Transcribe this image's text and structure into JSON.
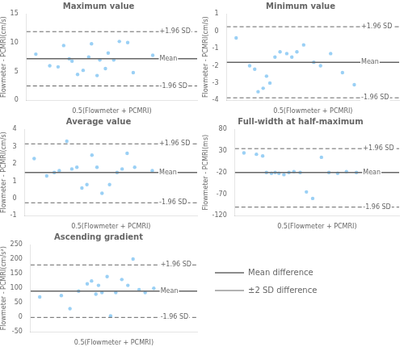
{
  "chart_data": [
    {
      "type": "scatter",
      "title": "Maximum value",
      "xlabel": "0.5(Flowmeter + PCMRI)",
      "ylabel": "Flowmeter - PCMRI(cm/s)",
      "x": [
        7.0,
        7.5,
        7.8,
        8.0,
        8.2,
        8.3,
        8.5,
        8.7,
        8.9,
        9.0,
        9.2,
        9.3,
        9.5,
        9.6,
        9.8,
        10.0,
        10.3,
        10.5,
        11.2
      ],
      "values": [
        8.0,
        6.0,
        5.8,
        9.5,
        7.2,
        6.8,
        4.5,
        5.2,
        7.5,
        9.8,
        4.3,
        7.0,
        5.5,
        8.2,
        7.0,
        10.2,
        10.0,
        4.8,
        7.8
      ],
      "xlim": [
        6.664,
        12.796
      ],
      "ylim": [
        0,
        15
      ],
      "yticks": [
        0,
        5,
        10,
        15
      ],
      "annotations": [
        {
          "text": "Mean",
          "y": 7.2,
          "line_style": "solid"
        },
        {
          "text": "+1.96 SD",
          "y": 11.9,
          "line_style": "dashed"
        },
        {
          "text": "-1.96 SD",
          "y": 2.5,
          "line_style": "dashed"
        }
      ],
      "grid": false,
      "tick_labels": "y"
    },
    {
      "type": "scatter",
      "title": "Minimum value",
      "xlabel": "0.5(Flowmeter + PCMRI)",
      "ylabel": "Flowmeter - PCMRI(cm/s)",
      "x": [
        1.2,
        2.0,
        2.3,
        2.5,
        2.8,
        3.0,
        3.2,
        3.5,
        3.8,
        4.2,
        4.5,
        4.8,
        5.2,
        5.8,
        6.2,
        6.8,
        7.5,
        8.2
      ],
      "values": [
        -0.4,
        -2.0,
        -2.2,
        -3.5,
        -3.3,
        -2.6,
        -3.0,
        -1.5,
        -1.2,
        -1.3,
        -1.5,
        -1.2,
        -0.8,
        -1.8,
        -2.0,
        -1.3,
        -2.4,
        -3.1
      ],
      "xlim": [
        0.64,
        10.86
      ],
      "ylim": [
        -4,
        1
      ],
      "yticks": [
        -4,
        -3,
        -2,
        -1,
        0,
        1
      ],
      "annotations": [
        {
          "text": "Mean",
          "y": -1.8,
          "line_style": "solid"
        },
        {
          "text": "+1.96 SD",
          "y": 0.25,
          "line_style": "dashed"
        },
        {
          "text": "-1.96 SD",
          "y": -3.85,
          "line_style": "dashed"
        }
      ],
      "grid": false,
      "tick_labels": "y"
    },
    {
      "type": "scatter",
      "title": "Average value",
      "xlabel": "0.5(Flowmeter + PCMRI)",
      "ylabel": "Flowmeter - PCMRI(cm/s)",
      "x": [
        3.5,
        4.0,
        4.3,
        4.5,
        4.8,
        5.0,
        5.2,
        5.4,
        5.6,
        5.8,
        6.0,
        6.2,
        6.5,
        6.8,
        7.0,
        7.2,
        7.5,
        8.2
      ],
      "values": [
        2.3,
        1.3,
        1.5,
        1.6,
        3.3,
        1.7,
        1.8,
        0.6,
        0.8,
        2.5,
        1.8,
        0.3,
        0.8,
        1.5,
        1.7,
        2.6,
        1.8,
        1.6
      ],
      "xlim": [
        3.124,
        9.986
      ],
      "ylim": [
        -1,
        4
      ],
      "yticks": [
        -1,
        0,
        1,
        2,
        3,
        4
      ],
      "annotations": [
        {
          "text": "Mean",
          "y": 1.5,
          "line_style": "solid"
        },
        {
          "text": "+1.96 SD",
          "y": 3.15,
          "line_style": "dashed"
        },
        {
          "text": "-1.96 SD",
          "y": -0.25,
          "line_style": "dashed"
        }
      ],
      "grid": false,
      "tick_labels": "y"
    },
    {
      "type": "scatter",
      "title": "Full-width at half-maximum",
      "xlabel": "0.5(Flowmeter + PCMRI)",
      "ylabel": "Flowmeter - PCMRI(ms)",
      "x": [
        100,
        110,
        115,
        118,
        122,
        125,
        128,
        132,
        136,
        140,
        145,
        150,
        155,
        162,
        168,
        175,
        182,
        190
      ],
      "values": [
        25,
        22,
        18,
        -20,
        -22,
        -20,
        -22,
        -25,
        -20,
        -18,
        -20,
        -65,
        -80,
        15,
        -20,
        -22,
        -18,
        -20
      ],
      "xlim": [
        92.8,
        224.2
      ],
      "ylim": [
        -120,
        80
      ],
      "yticks": [
        -120,
        -70,
        -20,
        30,
        80
      ],
      "annotations": [
        {
          "text": "Mean",
          "y": -20,
          "line_style": "solid"
        },
        {
          "text": "+1.96 SD",
          "y": 35,
          "line_style": "dashed"
        },
        {
          "text": "-1.96 SD",
          "y": -100,
          "line_style": "dashed"
        }
      ],
      "grid": false,
      "tick_labels": "y"
    },
    {
      "type": "scatter",
      "title": "Ascending gradient",
      "xlabel": "0.5(Flowmeter + PCMRI)",
      "ylabel": "Flowmeter - PCMRI(cm/s²)",
      "x": [
        150,
        175,
        185,
        195,
        205,
        210,
        215,
        218,
        222,
        228,
        232,
        238,
        245,
        252,
        258,
        265,
        272,
        282
      ],
      "values": [
        70,
        75,
        30,
        90,
        115,
        125,
        80,
        110,
        85,
        140,
        5,
        85,
        130,
        110,
        200,
        95,
        85,
        100
      ],
      "xlim": [
        139.44,
        332.16
      ],
      "ylim": [
        -50,
        250
      ],
      "yticks": [
        -50,
        0,
        50,
        100,
        150,
        200,
        250
      ],
      "annotations": [
        {
          "text": "Mean",
          "y": 90,
          "line_style": "solid"
        },
        {
          "text": "+1.96 SD",
          "y": 180,
          "line_style": "dashed"
        },
        {
          "text": "-1.96 SD",
          "y": 0,
          "line_style": "dashed"
        }
      ],
      "grid": false,
      "tick_labels": "y"
    },
    {
      "type": "legend",
      "series": [
        {
          "name": "Mean difference",
          "line_style": "solid"
        },
        {
          "name": "±2 SD difference",
          "line_style": "dashed"
        }
      ]
    }
  ]
}
